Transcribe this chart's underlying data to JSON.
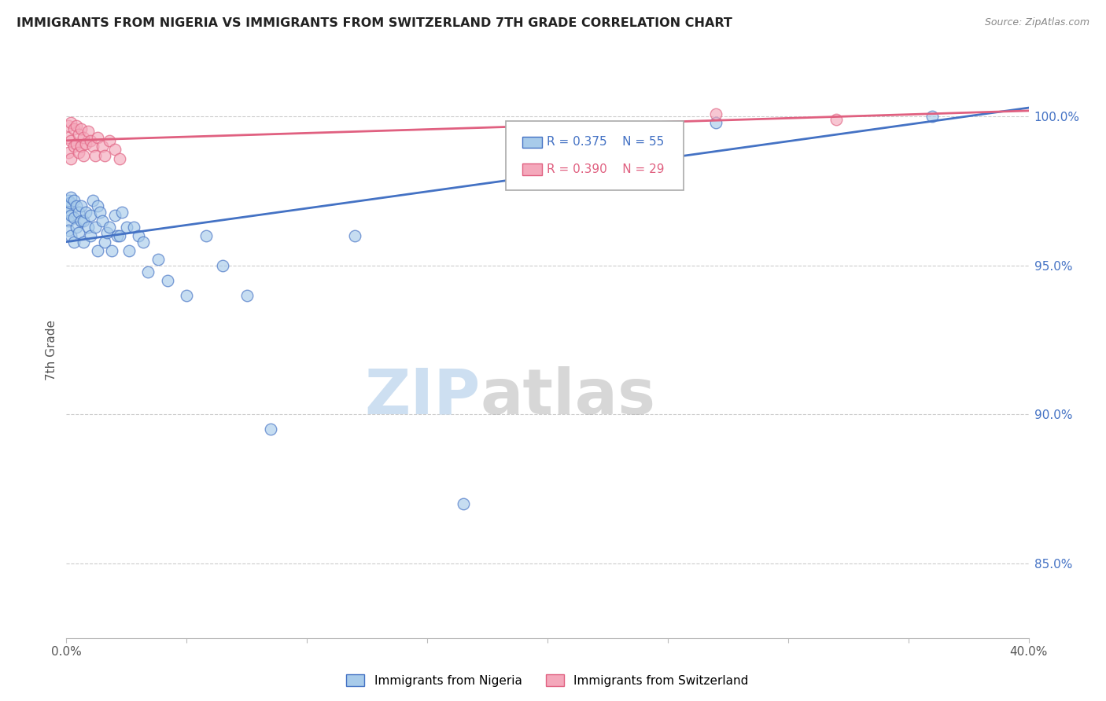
{
  "title": "IMMIGRANTS FROM NIGERIA VS IMMIGRANTS FROM SWITZERLAND 7TH GRADE CORRELATION CHART",
  "source": "Source: ZipAtlas.com",
  "ylabel": "7th Grade",
  "yaxis_labels": [
    "100.0%",
    "95.0%",
    "90.0%",
    "85.0%"
  ],
  "yaxis_values": [
    1.0,
    0.95,
    0.9,
    0.85
  ],
  "xmin": 0.0,
  "xmax": 0.4,
  "ymin": 0.825,
  "ymax": 1.018,
  "nigeria_R": 0.375,
  "nigeria_N": 55,
  "switzerland_R": 0.39,
  "switzerland_N": 29,
  "nigeria_color": "#A8CBEA",
  "switzerland_color": "#F4A8BB",
  "nigeria_line_color": "#4472C4",
  "switzerland_line_color": "#E06080",
  "legend_label_nigeria": "Immigrants from Nigeria",
  "legend_label_switzerland": "Immigrants from Switzerland",
  "watermark_zip": "ZIP",
  "watermark_atlas": "atlas",
  "nigeria_x": [
    0.0005,
    0.001,
    0.001,
    0.001,
    0.001,
    0.0015,
    0.002,
    0.002,
    0.002,
    0.003,
    0.003,
    0.003,
    0.004,
    0.004,
    0.005,
    0.005,
    0.006,
    0.006,
    0.007,
    0.007,
    0.008,
    0.009,
    0.01,
    0.01,
    0.011,
    0.012,
    0.013,
    0.013,
    0.014,
    0.015,
    0.016,
    0.017,
    0.018,
    0.019,
    0.02,
    0.021,
    0.022,
    0.023,
    0.025,
    0.026,
    0.028,
    0.03,
    0.032,
    0.034,
    0.038,
    0.042,
    0.05,
    0.058,
    0.065,
    0.075,
    0.085,
    0.12,
    0.165,
    0.27,
    0.36
  ],
  "nigeria_y": [
    0.97,
    0.968,
    0.965,
    0.972,
    0.962,
    0.971,
    0.973,
    0.967,
    0.96,
    0.972,
    0.966,
    0.958,
    0.97,
    0.963,
    0.968,
    0.961,
    0.97,
    0.965,
    0.965,
    0.958,
    0.968,
    0.963,
    0.967,
    0.96,
    0.972,
    0.963,
    0.97,
    0.955,
    0.968,
    0.965,
    0.958,
    0.961,
    0.963,
    0.955,
    0.967,
    0.96,
    0.96,
    0.968,
    0.963,
    0.955,
    0.963,
    0.96,
    0.958,
    0.948,
    0.952,
    0.945,
    0.94,
    0.96,
    0.95,
    0.94,
    0.895,
    0.96,
    0.87,
    0.998,
    1.0
  ],
  "switzerland_x": [
    0.001,
    0.001,
    0.001,
    0.002,
    0.002,
    0.002,
    0.003,
    0.003,
    0.004,
    0.004,
    0.005,
    0.005,
    0.006,
    0.006,
    0.007,
    0.007,
    0.008,
    0.009,
    0.01,
    0.011,
    0.012,
    0.013,
    0.015,
    0.016,
    0.018,
    0.02,
    0.022,
    0.27,
    0.32
  ],
  "switzerland_y": [
    0.997,
    0.993,
    0.988,
    0.998,
    0.992,
    0.986,
    0.996,
    0.99,
    0.997,
    0.991,
    0.994,
    0.988,
    0.996,
    0.99,
    0.993,
    0.987,
    0.991,
    0.995,
    0.992,
    0.99,
    0.987,
    0.993,
    0.99,
    0.987,
    0.992,
    0.989,
    0.986,
    1.001,
    0.999
  ],
  "nigeria_trend_x": [
    0.0,
    0.4
  ],
  "nigeria_trend_y": [
    0.958,
    1.003
  ],
  "switzerland_trend_x": [
    0.0,
    0.4
  ],
  "switzerland_trend_y": [
    0.992,
    1.002
  ]
}
